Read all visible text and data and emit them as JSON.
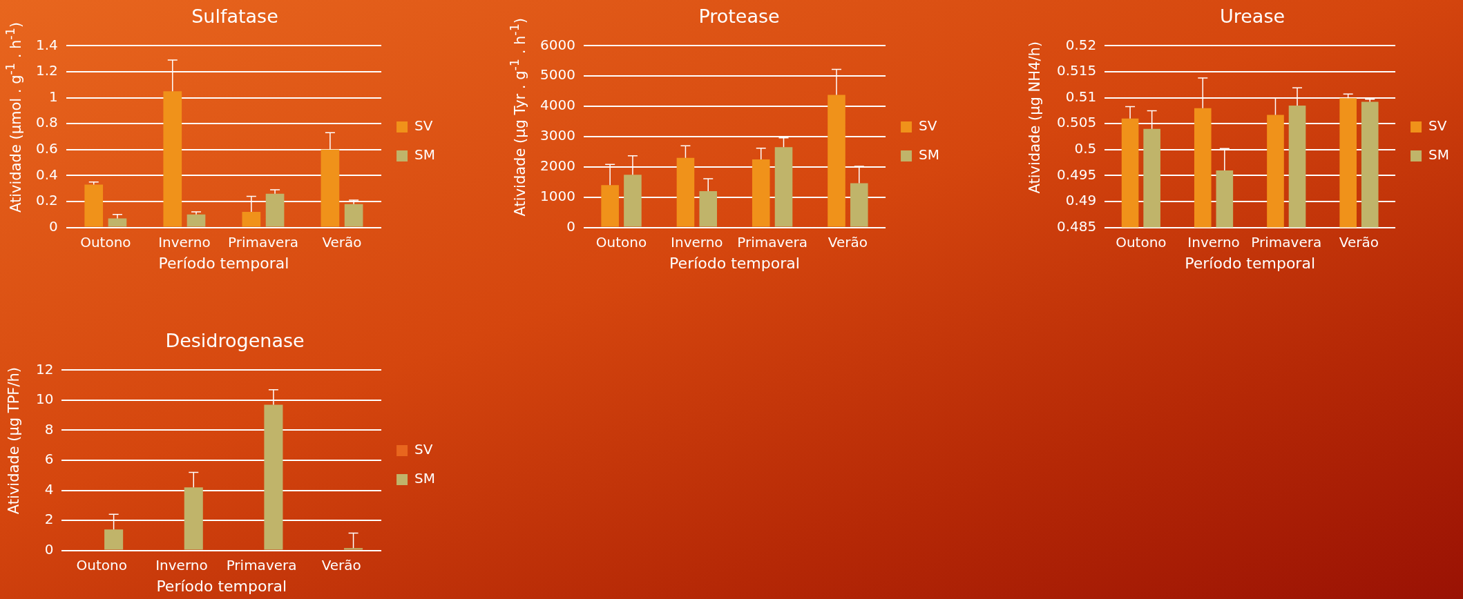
{
  "chart_data": [
    {
      "type": "bar",
      "title": "Sulfatase",
      "xlabel": "Período temporal",
      "ylabel": "Atividade (µmol . g$^{-1}$ . h$^{-1}$)",
      "categories": [
        "Outono",
        "Inverno",
        "Primavera",
        "Verão"
      ],
      "series": [
        {
          "name": "SV",
          "color": "#f0921a",
          "values": [
            0.33,
            1.05,
            0.12,
            0.6
          ],
          "errors": [
            [
              0.33,
              0.35
            ],
            [
              1.05,
              1.29
            ],
            [
              0.12,
              0.24
            ],
            [
              0.6,
              0.73
            ]
          ]
        },
        {
          "name": "SM",
          "color": "#c0b46a",
          "values": [
            0.07,
            0.1,
            0.26,
            0.18
          ],
          "errors": [
            [
              0.07,
              0.1
            ],
            [
              0.1,
              0.12
            ],
            [
              0.26,
              0.29
            ],
            [
              0.18,
              0.21
            ]
          ]
        }
      ],
      "ylim": [
        0,
        1.4
      ],
      "yticks": [
        0,
        0.2,
        0.4,
        0.6,
        0.8,
        1,
        1.2,
        1.4
      ],
      "grid": "y",
      "legend": "right"
    },
    {
      "type": "bar",
      "title": "Protease",
      "xlabel": "Período temporal",
      "ylabel": "Atividade (µg Tyr . g$^{-1}$ . h$^{-1}$)",
      "categories": [
        "Outono",
        "Inverno",
        "Primavera",
        "Verão"
      ],
      "series": [
        {
          "name": "SV",
          "color": "#f0921a",
          "values": [
            1400,
            2300,
            2250,
            4380
          ],
          "errors": [
            [
              1400,
              2080
            ],
            [
              2300,
              2700
            ],
            [
              2250,
              2620
            ],
            [
              4380,
              5220
            ]
          ]
        },
        {
          "name": "SM",
          "color": "#c0b46a",
          "values": [
            1740,
            1200,
            2650,
            1460
          ],
          "errors": [
            [
              1740,
              2370
            ],
            [
              1200,
              1610
            ],
            [
              2650,
              2960
            ],
            [
              1460,
              2020
            ]
          ]
        }
      ],
      "ylim": [
        0,
        6000
      ],
      "yticks": [
        0,
        1000,
        2000,
        3000,
        4000,
        5000,
        6000
      ],
      "grid": "y",
      "legend": "right"
    },
    {
      "type": "bar",
      "title": "Urease",
      "xlabel": "Período temporal",
      "ylabel": "Atividade (µg NH4/h)",
      "categories": [
        "Outono",
        "Inverno",
        "Primavera",
        "Verão"
      ],
      "series": [
        {
          "name": "SV",
          "color": "#f0921a",
          "values": [
            0.506,
            0.508,
            0.5067,
            0.5099
          ],
          "errors": [
            [
              0.506,
              0.5083
            ],
            [
              0.508,
              0.5138
            ],
            [
              0.5067,
              0.5099
            ],
            [
              0.5099,
              0.5107
            ]
          ]
        },
        {
          "name": "SM",
          "color": "#c0b46a",
          "values": [
            0.504,
            0.496,
            0.5085,
            0.5092
          ],
          "errors": [
            [
              0.504,
              0.5075
            ],
            [
              0.496,
              0.5002
            ],
            [
              0.5085,
              0.5119
            ],
            [
              0.5092,
              0.5097
            ]
          ]
        }
      ],
      "ylim": [
        0.485,
        0.52
      ],
      "yticks": [
        0.485,
        0.49,
        0.495,
        0.5,
        0.505,
        0.51,
        0.515,
        0.52
      ],
      "grid": "y",
      "legend": "right"
    },
    {
      "type": "bar",
      "title": "Desidrogenase",
      "xlabel": "Período temporal",
      "ylabel": "Atividade (µg TPF/h)",
      "categories": [
        "Outono",
        "Inverno",
        "Primavera",
        "Verão"
      ],
      "series": [
        {
          "name": "SV",
          "color": "#e8661e",
          "values": [
            0,
            0,
            0,
            0
          ]
        },
        {
          "name": "SM",
          "color": "#c0b46a",
          "values": [
            1.4,
            4.2,
            9.7,
            0.15
          ],
          "errors": [
            [
              1.4,
              2.4
            ],
            [
              4.2,
              5.2
            ],
            [
              9.7,
              10.7
            ],
            [
              0.15,
              1.15
            ]
          ]
        }
      ],
      "ylim": [
        0,
        12
      ],
      "yticks": [
        0,
        2,
        4,
        6,
        8,
        10,
        12
      ],
      "grid": "y",
      "legend": "right"
    }
  ]
}
